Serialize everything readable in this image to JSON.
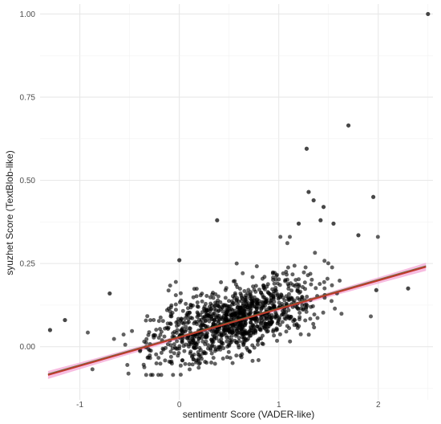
{
  "chart_data": {
    "type": "scatter",
    "title": "",
    "xlabel": "sentimentr Score (VADER-like)",
    "ylabel": "syuzhet Score (TextBlob-like)",
    "xlim": [
      -1.4,
      2.55
    ],
    "ylim": [
      -0.16,
      1.03
    ],
    "x_ticks": [
      -1,
      0,
      1,
      2
    ],
    "y_ticks": [
      0.0,
      0.25,
      0.5,
      0.75,
      1.0
    ],
    "x_tick_labels": [
      "-1",
      "0",
      "1",
      "2"
    ],
    "y_tick_labels": [
      "0.00",
      "0.25",
      "0.50",
      "0.75",
      "1.00"
    ],
    "grid": true,
    "legend": "none",
    "point_color": "#000000",
    "fit_line": {
      "type": "linear",
      "x_start": -1.32,
      "y_start": -0.085,
      "x_end": 2.48,
      "y_end": 0.24,
      "color": "#c0392b",
      "band_color": "#f4a6d6",
      "secondary_color": "#556b2f"
    },
    "points_highlight": [
      {
        "x": 2.5,
        "y": 1.0
      },
      {
        "x": 1.7,
        "y": 0.665
      },
      {
        "x": 1.28,
        "y": 0.595
      },
      {
        "x": 1.95,
        "y": 0.45
      },
      {
        "x": 1.3,
        "y": 0.465
      },
      {
        "x": 1.35,
        "y": 0.44
      },
      {
        "x": 1.42,
        "y": 0.38
      },
      {
        "x": 1.45,
        "y": 0.42
      },
      {
        "x": 1.55,
        "y": 0.37
      },
      {
        "x": 1.8,
        "y": 0.335
      },
      {
        "x": 1.2,
        "y": 0.37
      },
      {
        "x": 0.38,
        "y": 0.38
      },
      {
        "x": -1.3,
        "y": 0.05
      },
      {
        "x": -1.15,
        "y": 0.08
      },
      {
        "x": 2.3,
        "y": 0.175
      },
      {
        "x": 1.98,
        "y": 0.17
      },
      {
        "x": 0.0,
        "y": 0.26
      },
      {
        "x": -0.7,
        "y": 0.16
      }
    ],
    "cluster": {
      "n": 1150,
      "x_center": 0.55,
      "x_spread": 0.42,
      "slope": 0.086,
      "intercept": 0.029,
      "y_noise": 0.045,
      "seed": 20240101
    }
  }
}
